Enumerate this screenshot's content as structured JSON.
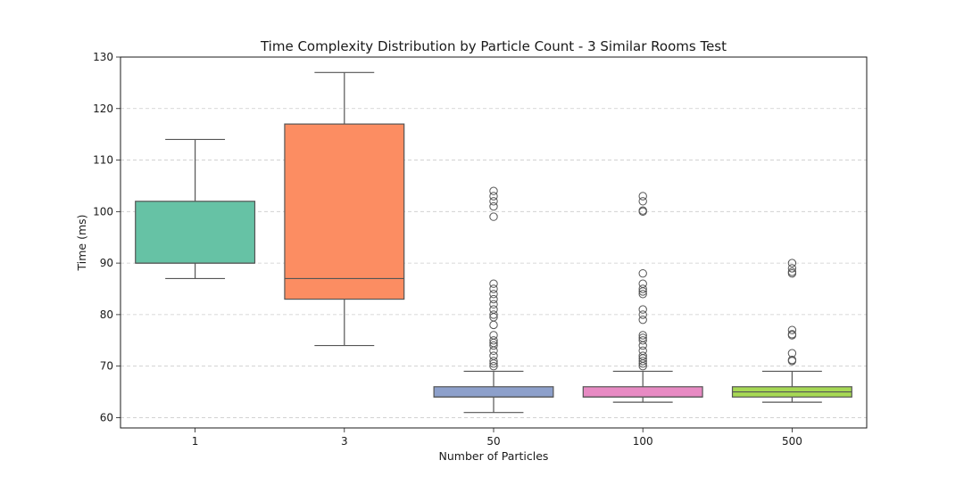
{
  "chart_data": {
    "type": "box",
    "title": "Time Complexity Distribution by Particle Count - 3 Similar Rooms Test",
    "xlabel": "Number of Particles",
    "ylabel": "Time (ms)",
    "ylim": [
      58,
      130
    ],
    "yticks": [
      60,
      70,
      80,
      90,
      100,
      110,
      120,
      130
    ],
    "grid": "y-dashed",
    "categories": [
      "1",
      "3",
      "50",
      "100",
      "500"
    ],
    "series": [
      {
        "category": "1",
        "color": "#66c2a5",
        "whisker_low": 87,
        "q1": 90,
        "median": 90,
        "q3": 102,
        "whisker_high": 114,
        "outliers": []
      },
      {
        "category": "3",
        "color": "#fc8d62",
        "whisker_low": 74,
        "q1": 83,
        "median": 87,
        "q3": 117,
        "whisker_high": 127,
        "outliers": []
      },
      {
        "category": "50",
        "color": "#8da0cb",
        "whisker_low": 61,
        "q1": 64,
        "median": 64,
        "q3": 66,
        "whisker_high": 69,
        "outliers": [
          70,
          70.5,
          71,
          72,
          73,
          74,
          74.5,
          75,
          76,
          78,
          79.5,
          80,
          81,
          82,
          83,
          84,
          85,
          86,
          99,
          101,
          102,
          103,
          104
        ]
      },
      {
        "category": "100",
        "color": "#e78ac3",
        "whisker_low": 63,
        "q1": 64,
        "median": 64,
        "q3": 66,
        "whisker_high": 69,
        "outliers": [
          70,
          70.5,
          71,
          71.5,
          72,
          73,
          74,
          75,
          75.5,
          76,
          79,
          80,
          81,
          84,
          84.5,
          85,
          86,
          88,
          100,
          100.2,
          102,
          103
        ]
      },
      {
        "category": "500",
        "color": "#a6d854",
        "whisker_low": 63,
        "q1": 64,
        "median": 65,
        "q3": 66,
        "whisker_high": 69,
        "outliers": [
          71,
          71.2,
          72.5,
          76,
          76.2,
          77,
          88,
          88.3,
          89,
          90
        ]
      }
    ]
  }
}
